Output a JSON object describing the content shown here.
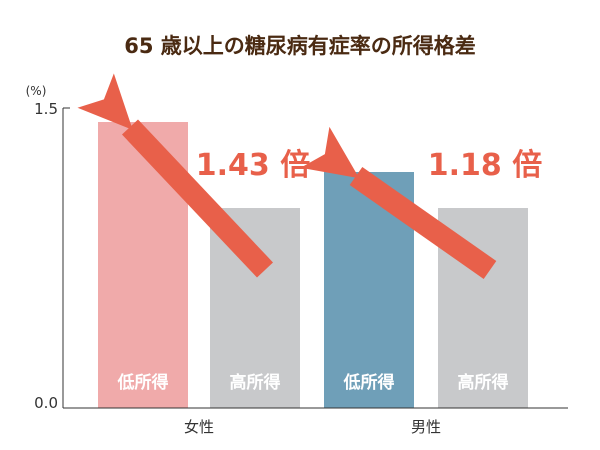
{
  "chart_data": {
    "type": "bar",
    "title": "65 歳以上の糖尿病有症率の所得格差",
    "ylabel": "(%)",
    "ylim": [
      0,
      1.5
    ],
    "yticks": [
      "0.0",
      "1.5"
    ],
    "categories": [
      "女性",
      "男性"
    ],
    "bars": [
      {
        "category": "女性",
        "label": "低所得",
        "value": 1.43,
        "color": "#f0aaaa"
      },
      {
        "category": "女性",
        "label": "高所得",
        "value": 1.0,
        "color": "#c8c9cb"
      },
      {
        "category": "男性",
        "label": "低所得",
        "value": 1.18,
        "color": "#6f9fb8"
      },
      {
        "category": "男性",
        "label": "高所得",
        "value": 1.0,
        "color": "#c8c9cb"
      }
    ],
    "annotations": [
      {
        "category": "女性",
        "text": "1.43 倍"
      },
      {
        "category": "男性",
        "text": "1.18 倍"
      }
    ],
    "arrow_color": "#e8604a",
    "grid": false
  }
}
